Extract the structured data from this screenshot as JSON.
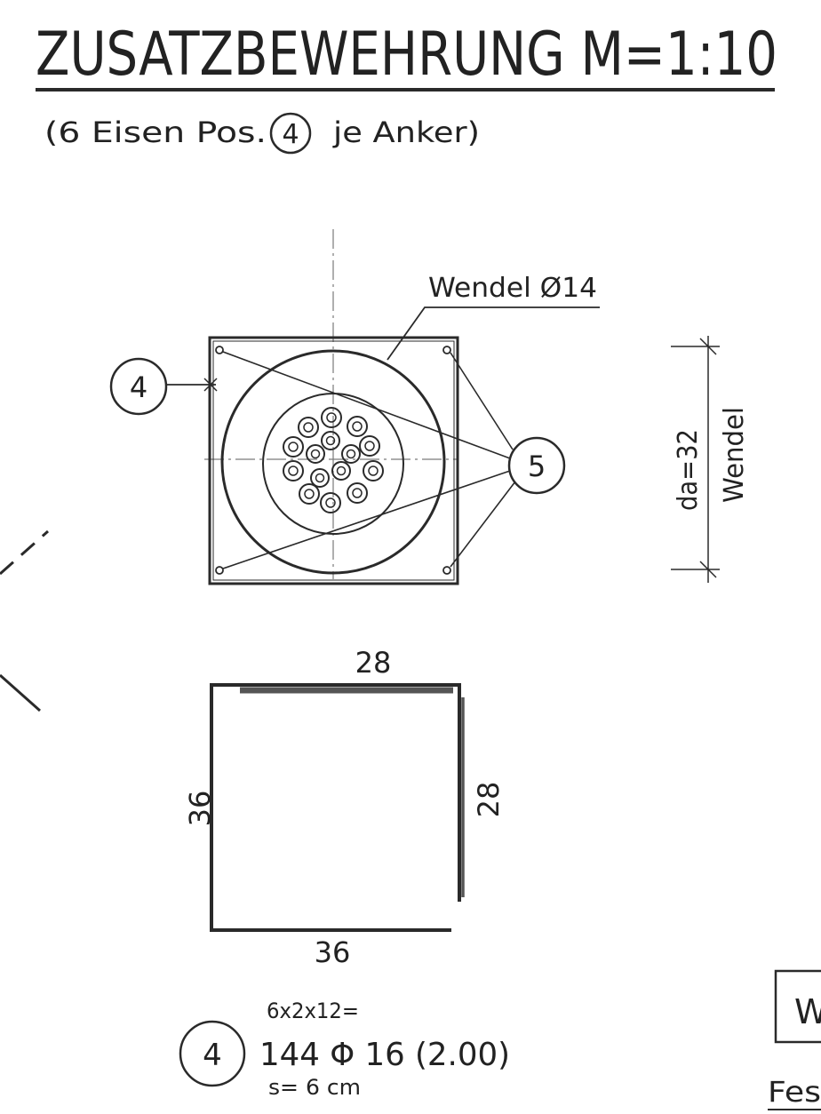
{
  "title": "ZUSATZBEWEHRUNG M=1:10",
  "subtitle": {
    "prefix": "(6 Eisen Pos.",
    "pos": "4",
    "suffix": "je Anker)"
  },
  "plan": {
    "wendel_label": "Wendel Ø14",
    "pos4_marker": "4",
    "pos5_marker": "5",
    "dim_da": "da=32",
    "dim_wendel": "Wendel"
  },
  "bar_shape": {
    "top": "28",
    "right": "28",
    "left": "36",
    "bottom": "36"
  },
  "schedule": {
    "pos": "4",
    "calc": "6x2x12=",
    "main": "144 Φ 16 (2.00)",
    "spacing": "s= 6 cm"
  },
  "clipped": {
    "box_text": "W",
    "bottom_text": "Fes"
  },
  "colors": {
    "ink": "#2a2a2a",
    "paper": "#ffffff"
  }
}
